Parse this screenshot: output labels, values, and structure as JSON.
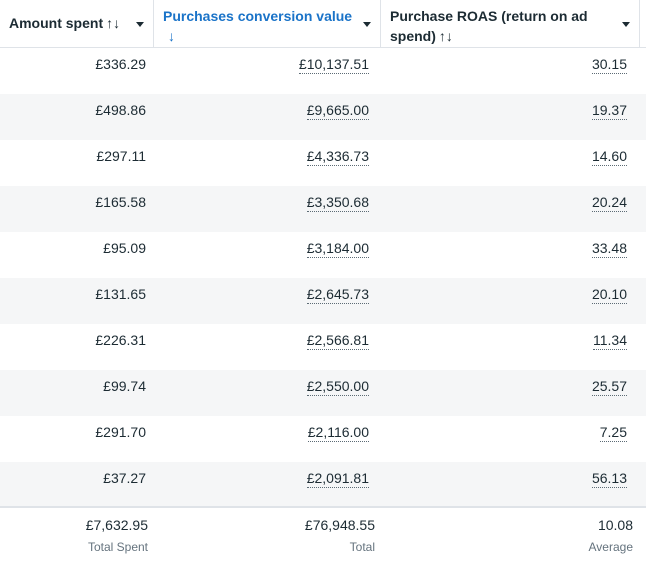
{
  "columns": [
    {
      "label": "Amount spent",
      "sort_icon": "↑↓",
      "icon": "sort-icon"
    },
    {
      "label": "Purchases conversion value",
      "sort_icon": "↓",
      "icon": "sort-desc-icon",
      "active": true
    },
    {
      "label": "Purchase ROAS (return on ad spend)",
      "sort_icon": "↑↓",
      "icon": "sort-icon"
    }
  ],
  "rows": [
    {
      "amount_spent": "£336.29",
      "conversion_value": "£10,137.51",
      "roas": "30.15"
    },
    {
      "amount_spent": "£498.86",
      "conversion_value": "£9,665.00",
      "roas": "19.37"
    },
    {
      "amount_spent": "£297.11",
      "conversion_value": "£4,336.73",
      "roas": "14.60"
    },
    {
      "amount_spent": "£165.58",
      "conversion_value": "£3,350.68",
      "roas": "20.24"
    },
    {
      "amount_spent": "£95.09",
      "conversion_value": "£3,184.00",
      "roas": "33.48"
    },
    {
      "amount_spent": "£131.65",
      "conversion_value": "£2,645.73",
      "roas": "20.10"
    },
    {
      "amount_spent": "£226.31",
      "conversion_value": "£2,566.81",
      "roas": "11.34"
    },
    {
      "amount_spent": "£99.74",
      "conversion_value": "£2,550.00",
      "roas": "25.57"
    },
    {
      "amount_spent": "£291.70",
      "conversion_value": "£2,116.00",
      "roas": "7.25"
    },
    {
      "amount_spent": "£37.27",
      "conversion_value": "£2,091.81",
      "roas": "56.13"
    }
  ],
  "footer": {
    "amount_spent": {
      "value": "£7,632.95",
      "label": "Total Spent"
    },
    "conversion_value": {
      "value": "£76,948.55",
      "label": "Total"
    },
    "roas": {
      "value": "10.08",
      "label": "Average"
    }
  },
  "colors": {
    "active_header": "#1a73c8",
    "text": "#1c2b33",
    "row_alt": "#f5f6f7",
    "muted": "#65737e"
  }
}
